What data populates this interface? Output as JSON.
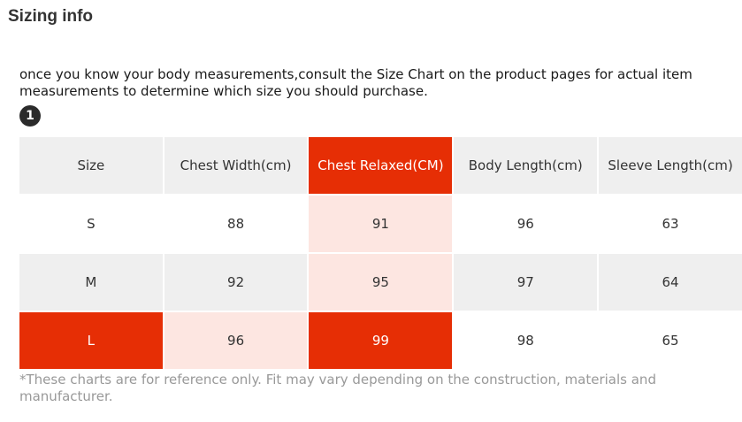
{
  "heading": "Sizing info",
  "intro": "once you know your body measurements,consult the Size Chart on the product pages for actual item measurements to determine which size you should purchase.",
  "step_marker": "1",
  "table": {
    "headers": [
      "Size",
      "Chest Width(cm)",
      "Chest Relaxed(CM)",
      "Body Length(cm)",
      "Sleeve Length(cm)"
    ],
    "rows": [
      [
        "S",
        "88",
        "91",
        "96",
        "63"
      ],
      [
        "M",
        "92",
        "95",
        "97",
        "64"
      ],
      [
        "L",
        "96",
        "99",
        "98",
        "65"
      ]
    ]
  },
  "footnote": "*These charts are for reference only. Fit may vary depending on the construction, materials and manufacturer.",
  "colors": {
    "highlight_strong": "#e62e05",
    "highlight_light": "#fde6e1",
    "header_bg": "#efefef"
  }
}
